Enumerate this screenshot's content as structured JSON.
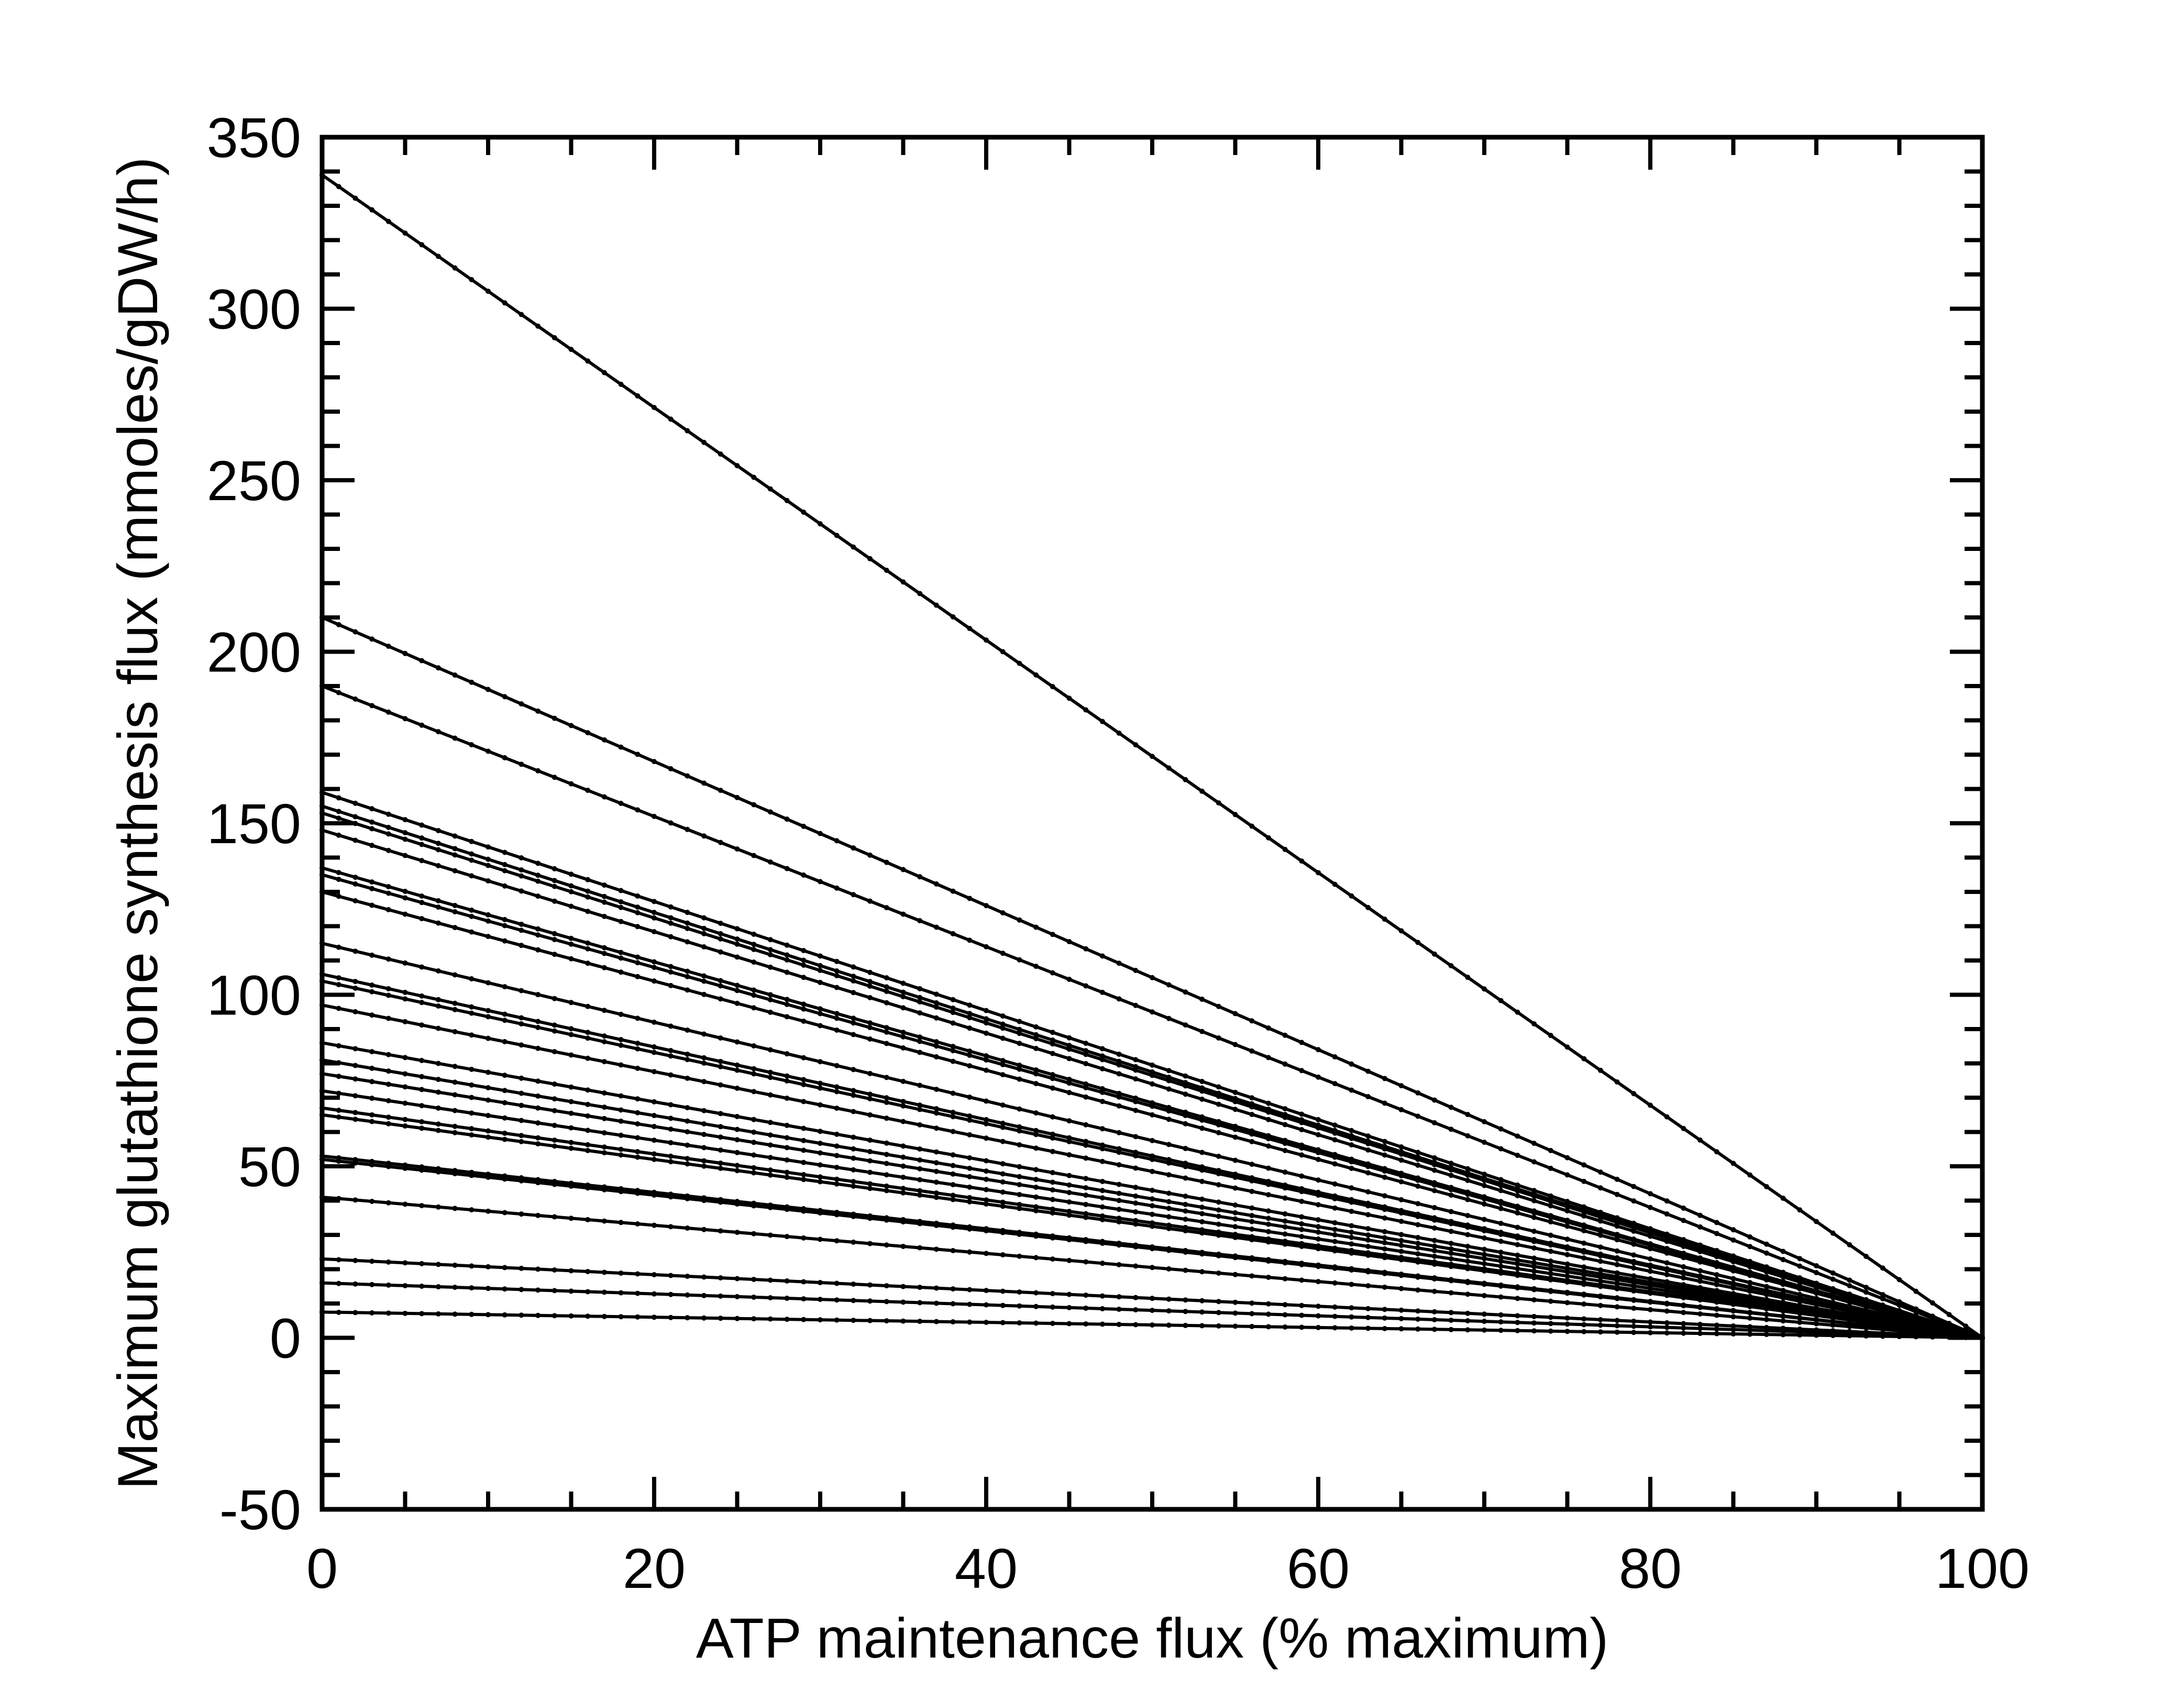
{
  "chart_data": {
    "type": "line",
    "title": "",
    "xlabel": "ATP maintenance flux (% maximum)",
    "ylabel": "Maximum glutathione synthesis flux (mmoles/gDW/h)",
    "xlim": [
      0,
      100
    ],
    "ylim": [
      -50,
      350
    ],
    "x_ticks": [
      0,
      20,
      40,
      60,
      80,
      100
    ],
    "y_ticks": [
      -50,
      0,
      50,
      100,
      150,
      200,
      250,
      300,
      350
    ],
    "x_tick_labels": [
      "0",
      "20",
      "40",
      "60",
      "80",
      "100"
    ],
    "y_tick_labels": [
      "-50",
      "0",
      "50",
      "100",
      "150",
      "200",
      "250",
      "300",
      "350"
    ],
    "x_minor_step": 5,
    "y_minor_step": 10,
    "grid": false,
    "legend": "none",
    "line_color": "#000000",
    "marker": "small dots",
    "x": [
      0,
      100
    ],
    "series": [
      {
        "values": [
          339,
          0
        ]
      },
      {
        "values": [
          210,
          0
        ]
      },
      {
        "values": [
          190,
          0
        ]
      },
      {
        "values": [
          159,
          0
        ]
      },
      {
        "values": [
          155,
          0
        ]
      },
      {
        "values": [
          153,
          0
        ]
      },
      {
        "values": [
          148,
          0
        ]
      },
      {
        "values": [
          137,
          0
        ]
      },
      {
        "values": [
          135,
          0
        ]
      },
      {
        "values": [
          130,
          0
        ]
      },
      {
        "values": [
          115,
          0
        ]
      },
      {
        "values": [
          106,
          0
        ]
      },
      {
        "values": [
          104,
          0
        ]
      },
      {
        "values": [
          97,
          0
        ]
      },
      {
        "values": [
          86,
          0
        ]
      },
      {
        "values": [
          81,
          0
        ]
      },
      {
        "values": [
          77,
          0
        ]
      },
      {
        "values": [
          72,
          0
        ]
      },
      {
        "values": [
          67,
          0
        ]
      },
      {
        "values": [
          65,
          0
        ]
      },
      {
        "values": [
          53,
          0
        ]
      },
      {
        "values": [
          52,
          0
        ]
      },
      {
        "values": [
          41,
          0
        ]
      },
      {
        "values": [
          23,
          0
        ]
      },
      {
        "values": [
          16,
          0
        ]
      },
      {
        "values": [
          7.5,
          0
        ]
      }
    ]
  }
}
